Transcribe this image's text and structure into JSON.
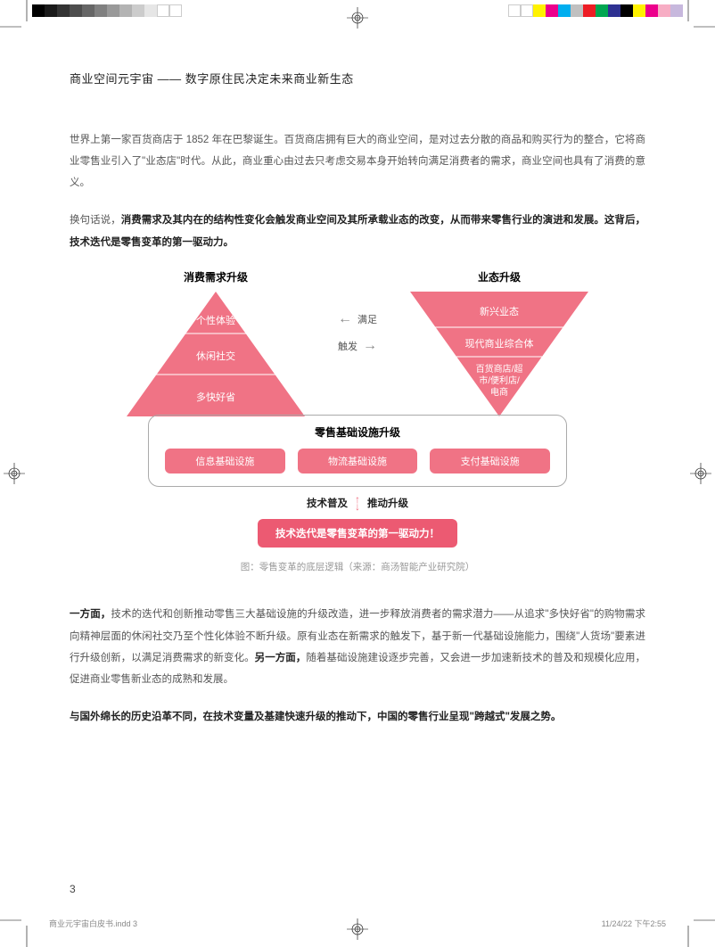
{
  "color_bar_left": [
    "#000000",
    "#1a1a1a",
    "#333333",
    "#4d4d4d",
    "#666666",
    "#808080",
    "#999999",
    "#b3b3b3",
    "#cccccc",
    "#e6e6e6",
    "#ffffff",
    "#ffffff"
  ],
  "color_bar_right": [
    "#ffffff",
    "#ffffff",
    "#fff200",
    "#ec008c",
    "#00aeef",
    "#c0c0c0",
    "#ed1c24",
    "#00a651",
    "#2e3192",
    "#000000",
    "#fff200",
    "#ec008c",
    "#f7adc4",
    "#c7b8dd"
  ],
  "title": "商业空间元宇宙 —— 数字原住民决定未来商业新生态",
  "para1_plain": "世界上第一家百货商店于 1852 年在巴黎诞生。百货商店拥有巨大的商业空间，是对过去分散的商品和购买行为的整合，它将商业零售业引入了\"业态店\"时代。从此，商业重心由过去只考虑交易本身开始转向满足消费者的需求，商业空间也具有了消费的意义。",
  "para2_lead": "换句话说，",
  "para2_bold": "消费需求及其内在的结构性变化会触发商业空间及其所承载业态的改变，从而带来零售行业的演进和发展。这背后，技术迭代是零售变革的第一驱动力。",
  "diagram": {
    "left_title": "消费需求升级",
    "right_title": "业态升级",
    "tri_color": "#f07385",
    "tri_line": "#ffffff",
    "left_levels": [
      "个性体验",
      "休闲社交",
      "多快好省"
    ],
    "right_levels": [
      "新兴业态",
      "现代商业综合体",
      "百货商店/超市/便利店/电商"
    ],
    "arrows": [
      {
        "label": "满足",
        "dir": "←"
      },
      {
        "label": "触发",
        "dir": "→"
      }
    ],
    "infra_title": "零售基础设施升级",
    "infra_items": [
      "信息基础设施",
      "物流基础设施",
      "支付基础设施"
    ],
    "tech_left": "技术普及",
    "tech_right": "推动升级",
    "driver": "技术迭代是零售变革的第一驱动力！",
    "caption": "图：零售变革的底层逻辑（来源：商汤智能产业研究院）"
  },
  "para3_lead": "一方面，",
  "para3_body_a": "技术的迭代和创新推动零售三大基础设施的升级改造，进一步释放消费者的需求潜力——从追求\"多快好省\"的购物需求向精神层面的休闲社交乃至个性化体验不断升级。原有业态在新需求的触发下，基于新一代基础设施能力，围绕\"人货场\"要素进行升级创新，以满足消费需求的新变化。",
  "para3_mid_bold": "另一方面，",
  "para3_body_b": "随着基础设施建设逐步完善，又会进一步加速新技术的普及和规模化应用，促进商业零售新业态的成熟和发展。",
  "para4_bold": "与国外绵长的历史沿革不同，在技术变量及基建快速升级的推动下，中国的零售行业呈现\"跨越式\"发展之势。",
  "page_number": "3",
  "footer_left": "商业元宇宙白皮书.indd   3",
  "footer_right": "11/24/22   下午2:55"
}
